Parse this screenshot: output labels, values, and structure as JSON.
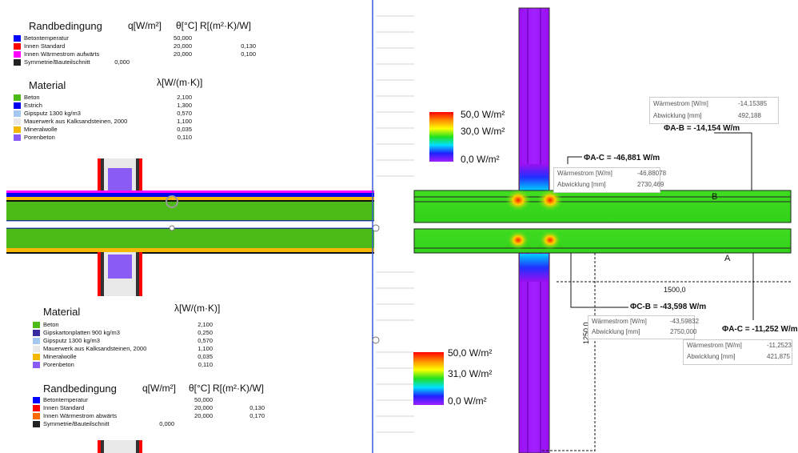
{
  "top_legend": {
    "rand_title": "Randbedingung",
    "q_header": "q[W/m²]",
    "theta_header": "θ[°C]",
    "r_header": "R[(m²·K)/W]",
    "rand_rows": [
      {
        "color": "#0000ff",
        "label": "Betontemperatur",
        "q": "",
        "theta": "50,000",
        "r": ""
      },
      {
        "color": "#ff0000",
        "label": "Innen Standard",
        "q": "",
        "theta": "20,000",
        "r": "0,130"
      },
      {
        "color": "#ff00ff",
        "label": "Innen Wärmestrom aufwärts",
        "q": "",
        "theta": "20,000",
        "r": "0,100"
      },
      {
        "color": "#222222",
        "label": "Symmetrie/Bauteilschnitt",
        "q": "0,000",
        "theta": "",
        "r": ""
      }
    ],
    "mat_title": "Material",
    "lambda_header": "λ[W/(m·K)]",
    "mat_rows": [
      {
        "color": "#4cbb17",
        "label": "Beton",
        "value": "2,100"
      },
      {
        "color": "#0000ee",
        "label": "Estrich",
        "value": "1,300"
      },
      {
        "color": "#a6c8f0",
        "label": "Gipsputz 1300 kg/m3",
        "value": "0,570"
      },
      {
        "color": "#e8e8e8",
        "label": "Mauerwerk aus Kalksandsteinen, 2000",
        "value": "1,100"
      },
      {
        "color": "#f5b800",
        "label": "Mineralwolle",
        "value": "0,035"
      },
      {
        "color": "#8a5cf5",
        "label": "Porenbeton",
        "value": "0,110"
      }
    ]
  },
  "bottom_legend": {
    "mat_title": "Material",
    "lambda_header": "λ[W/(m·K)]",
    "mat_rows": [
      {
        "color": "#4cbb17",
        "label": "Beton",
        "value": "2,100"
      },
      {
        "color": "#3a2aa0",
        "label": "Gipskartonplatten 900 kg/m3",
        "value": "0,250"
      },
      {
        "color": "#a6c8f0",
        "label": "Gipsputz 1300 kg/m3",
        "value": "0,570"
      },
      {
        "color": "#e8e8e8",
        "label": "Mauerwerk aus Kalksandsteinen, 2000",
        "value": "1,100"
      },
      {
        "color": "#f5b800",
        "label": "Mineralwolle",
        "value": "0,035"
      },
      {
        "color": "#8a5cf5",
        "label": "Porenbeton",
        "value": "0,110"
      }
    ],
    "rand_title": "Randbedingung",
    "q_header": "q[W/m²]",
    "theta_header": "θ[°C]",
    "r_header": "R[(m²·K)/W]",
    "rand_rows": [
      {
        "color": "#0000ff",
        "label": "Betontemperatur",
        "q": "",
        "theta": "50,000",
        "r": ""
      },
      {
        "color": "#ff0000",
        "label": "Innen Standard",
        "q": "",
        "theta": "20,000",
        "r": "0,130"
      },
      {
        "color": "#ff6a00",
        "label": "Innen Wärmestrom abwärts",
        "q": "",
        "theta": "20,000",
        "r": "0,170"
      },
      {
        "color": "#222222",
        "label": "Symmetrie/Bauteilschnitt",
        "q": "0,000",
        "theta": "",
        "r": ""
      }
    ]
  },
  "color_scale_top": {
    "max": "50,0 W/m²",
    "mid": "30,0 W/m²",
    "min": "0,0 W/m²"
  },
  "color_scale_bottom": {
    "max": "50,0 W/m²",
    "mid": "31,0 W/m²",
    "min": "0,0 W/m²"
  },
  "annotations": {
    "phi_ac": {
      "label": "ΦA-C = -46,881 W/m",
      "row1_label": "Wärmestrom [W/m]",
      "row1_value": "-46,88078",
      "row2_label": "Abwicklung [mm]",
      "row2_value": "2730,469"
    },
    "phi_ab": {
      "label": "ΦA-B = -14,154 W/m",
      "row1_label": "Wärmestrom [W/m]",
      "row1_value": "-14,15385",
      "row2_label": "Abwicklung [mm]",
      "row2_value": "492,188"
    },
    "phi_cb": {
      "label": "ΦC-B = -43,598 W/m",
      "row1_label": "Wärmestrom [W/m]",
      "row1_value": "-43,59832",
      "row2_label": "Abwicklung [mm]",
      "row2_value": "2750,000"
    },
    "phi_ac2": {
      "label": "ΦA-C = -11,252 W/m",
      "row1_label": "Wärmestrom [W/m]",
      "row1_value": "-11,2523",
      "row2_label": "Abwicklung [mm]",
      "row2_value": "421,875"
    },
    "point_a": "A",
    "point_b": "B",
    "dim_1500": "1500,0",
    "dim_1250": "1250,0"
  }
}
